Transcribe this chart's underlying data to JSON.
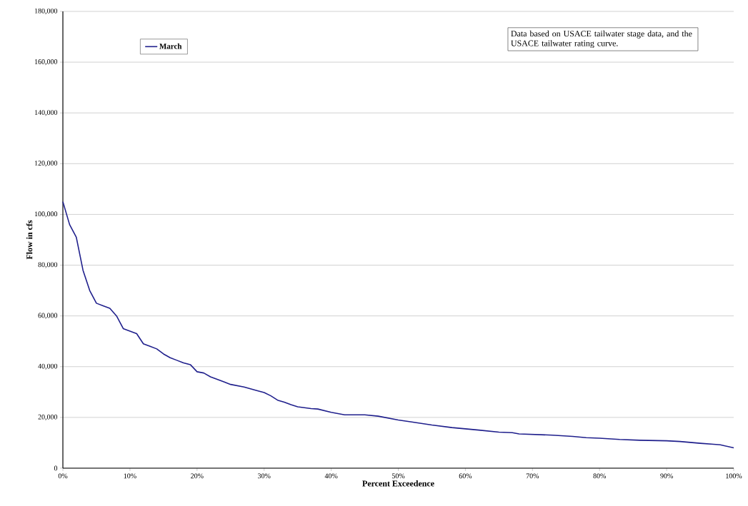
{
  "chart_data": {
    "type": "line",
    "xlabel": "Percent Exceedence",
    "ylabel": "Flow in cfs",
    "annotations": [
      "Data based on USACE tailwater stage data, and the USACE tailwater rating curve."
    ],
    "series": [
      {
        "name": "March",
        "color": "#1f1f8c",
        "x": [
          0,
          1,
          2,
          3,
          4,
          5,
          6,
          7,
          8,
          9,
          10,
          11,
          12,
          13,
          14,
          15,
          16,
          17,
          18,
          19,
          20,
          21,
          22,
          23,
          24,
          25,
          27,
          29,
          30,
          31,
          32,
          33,
          34,
          35,
          37,
          38,
          40,
          42,
          45,
          47,
          49,
          50,
          52,
          55,
          58,
          60,
          62,
          65,
          67,
          68,
          70,
          73,
          76,
          78,
          80,
          83,
          86,
          90,
          92,
          95,
          97,
          98,
          100
        ],
        "values": [
          105000,
          96000,
          91000,
          78000,
          70000,
          65000,
          64000,
          63000,
          60000,
          55000,
          54000,
          53000,
          49000,
          48000,
          47000,
          45000,
          43500,
          42500,
          41500,
          40800,
          38000,
          37500,
          36000,
          35000,
          34000,
          33000,
          32000,
          30500,
          29800,
          28500,
          26800,
          26000,
          25000,
          24200,
          23500,
          23300,
          22000,
          21000,
          21000,
          20500,
          19500,
          19000,
          18200,
          17000,
          16000,
          15500,
          15000,
          14200,
          14000,
          13500,
          13300,
          13000,
          12500,
          12000,
          11800,
          11300,
          11000,
          10800,
          10500,
          9800,
          9400,
          9200,
          8000
        ]
      }
    ],
    "xlim": [
      0,
      100
    ],
    "xticks": [
      {
        "value": 0,
        "label": "0%"
      },
      {
        "value": 10,
        "label": "10%"
      },
      {
        "value": 20,
        "label": "20%"
      },
      {
        "value": 30,
        "label": "30%"
      },
      {
        "value": 40,
        "label": "40%"
      },
      {
        "value": 50,
        "label": "50%"
      },
      {
        "value": 60,
        "label": "60%"
      },
      {
        "value": 70,
        "label": "70%"
      },
      {
        "value": 80,
        "label": "80%"
      },
      {
        "value": 90,
        "label": "90%"
      },
      {
        "value": 100,
        "label": "100%"
      }
    ],
    "ylim": [
      0,
      180000
    ],
    "yticks": [
      {
        "value": 0,
        "label": "0"
      },
      {
        "value": 20000,
        "label": "20,000"
      },
      {
        "value": 40000,
        "label": "40,000"
      },
      {
        "value": 60000,
        "label": "60,000"
      },
      {
        "value": 80000,
        "label": "80,000"
      },
      {
        "value": 100000,
        "label": "100,000"
      },
      {
        "value": 120000,
        "label": "120,000"
      },
      {
        "value": 140000,
        "label": "140,000"
      },
      {
        "value": 160000,
        "label": "160,000"
      },
      {
        "value": 180000,
        "label": "180,000"
      }
    ],
    "grid": "y",
    "legend": "top left",
    "marker": "none",
    "line_style": "solid"
  }
}
